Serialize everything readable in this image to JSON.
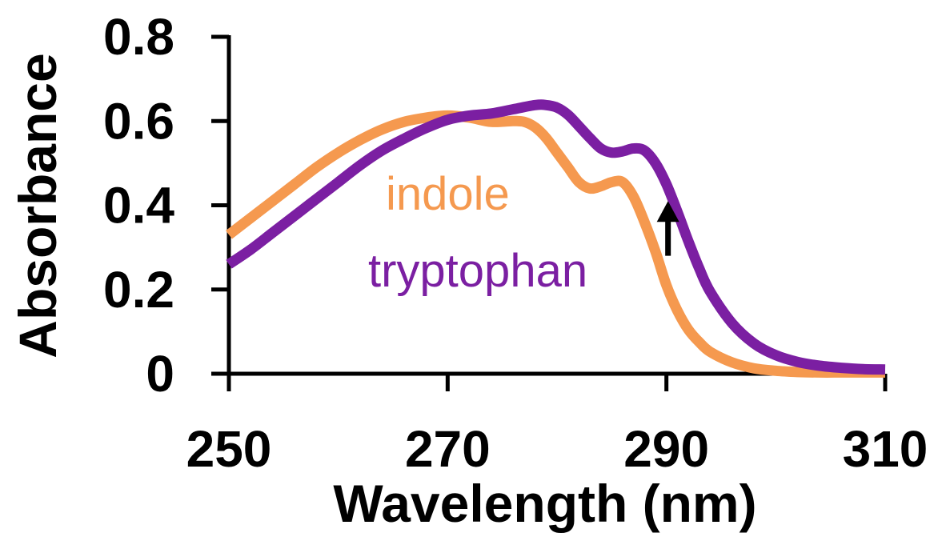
{
  "chart_data": {
    "type": "line",
    "xlabel": "Wavelength (nm)",
    "ylabel": "Absorbance",
    "xlim": [
      250,
      310
    ],
    "ylim": [
      0,
      0.8
    ],
    "xticks": [
      "250",
      "270",
      "290",
      "310"
    ],
    "yticks": [
      "0",
      "0.2",
      "0.4",
      "0.6",
      "0.8"
    ],
    "grid": false,
    "series": [
      {
        "name": "indole",
        "color": "#f5994f",
        "x": [
          250,
          252,
          254,
          256,
          258,
          260,
          262,
          264,
          266,
          268,
          270,
          272,
          274,
          276,
          277,
          278,
          279,
          280,
          281,
          282,
          283,
          284,
          285,
          286,
          287,
          288,
          289,
          290,
          291,
          292,
          293,
          294,
          296,
          298,
          300,
          302,
          304,
          306,
          308,
          310
        ],
        "y": [
          0.33,
          0.37,
          0.41,
          0.45,
          0.49,
          0.525,
          0.555,
          0.58,
          0.598,
          0.608,
          0.613,
          0.608,
          0.598,
          0.6,
          0.598,
          0.585,
          0.56,
          0.525,
          0.49,
          0.455,
          0.44,
          0.445,
          0.455,
          0.455,
          0.42,
          0.36,
          0.29,
          0.21,
          0.15,
          0.105,
          0.075,
          0.052,
          0.027,
          0.013,
          0.007,
          0.004,
          0.003,
          0.003,
          0.003,
          0.003
        ]
      },
      {
        "name": "tryptophan",
        "color": "#7b1fa2",
        "x": [
          250,
          252,
          254,
          256,
          258,
          260,
          262,
          264,
          266,
          268,
          270,
          272,
          274,
          276,
          278,
          279,
          280,
          281,
          282,
          283,
          284,
          285,
          286,
          287,
          288,
          289,
          290,
          291,
          292,
          293,
          294,
          296,
          298,
          300,
          302,
          304,
          306,
          308,
          310
        ],
        "y": [
          0.26,
          0.295,
          0.335,
          0.375,
          0.415,
          0.455,
          0.495,
          0.53,
          0.558,
          0.583,
          0.603,
          0.613,
          0.618,
          0.628,
          0.638,
          0.638,
          0.632,
          0.615,
          0.588,
          0.56,
          0.535,
          0.525,
          0.528,
          0.535,
          0.53,
          0.5,
          0.45,
          0.385,
          0.315,
          0.25,
          0.195,
          0.12,
          0.072,
          0.044,
          0.028,
          0.019,
          0.014,
          0.011,
          0.01
        ]
      }
    ],
    "annotations": [
      {
        "type": "arrow",
        "direction": "up",
        "x": 290,
        "y_from": 0.28,
        "y_to": 0.41
      }
    ]
  }
}
